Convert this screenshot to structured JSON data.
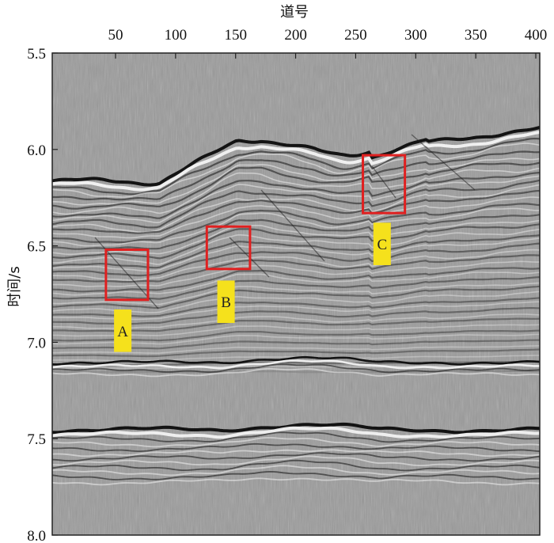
{
  "axes": {
    "x_title": "道号",
    "y_title": "时间/s",
    "x_ticks": [
      "50",
      "100",
      "150",
      "200",
      "250",
      "300",
      "350",
      "400"
    ],
    "y_ticks": [
      "5.5",
      "6.0",
      "6.5",
      "7.0",
      "7.5",
      "8.0"
    ]
  },
  "markers": [
    {
      "label": "A",
      "box": {
        "trace_from": 42,
        "trace_to": 77,
        "time_from": 6.52,
        "time_to": 6.78
      },
      "tag": {
        "trace": 56,
        "time_from": 6.83,
        "time_to": 7.05
      }
    },
    {
      "label": "B",
      "box": {
        "trace_from": 126,
        "trace_to": 162,
        "time_from": 6.4,
        "time_to": 6.62
      },
      "tag": {
        "trace": 142,
        "time_from": 6.68,
        "time_to": 6.9
      }
    },
    {
      "label": "C",
      "box": {
        "trace_from": 256,
        "trace_to": 291,
        "time_from": 6.03,
        "time_to": 6.33
      },
      "tag": {
        "trace": 272,
        "time_from": 6.38,
        "time_to": 6.6
      }
    }
  ],
  "colors": {
    "background": "#9a9a9a",
    "box_stroke": "#e02020",
    "tag_fill": "#f5e11c",
    "frame": "#222222"
  }
}
